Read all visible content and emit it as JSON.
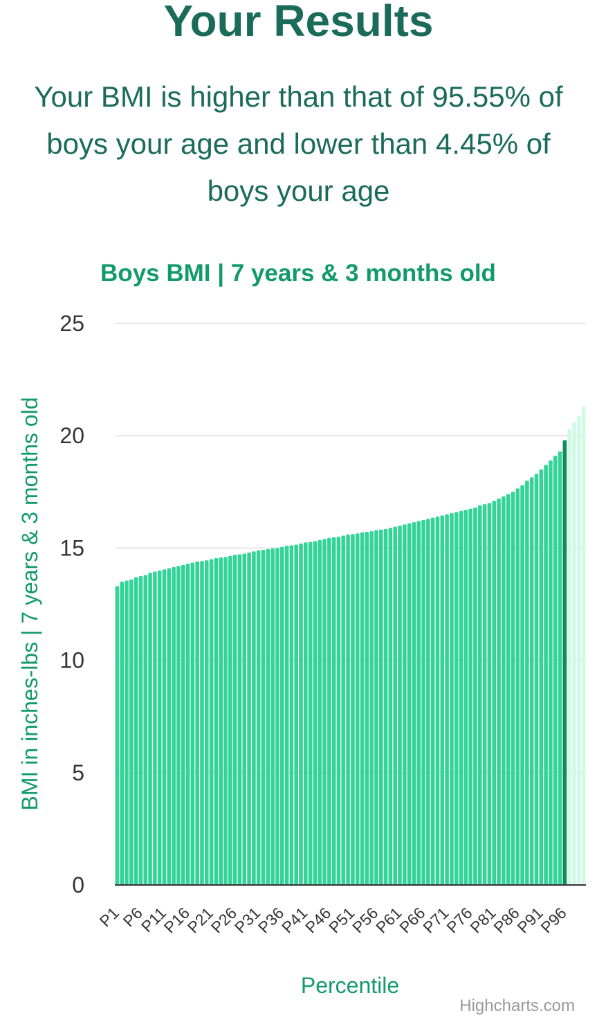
{
  "header": {
    "title": "Your Results",
    "summary": "Your BMI is higher than that of 95.55% of boys your age and lower than 4.45% of boys your age"
  },
  "credits": "Highcharts.com",
  "colors": {
    "bar": "#34d399",
    "highlight": "#0f8a5f",
    "above": "#d1fae5",
    "grid": "#e6e6e6",
    "axis_line": "#333333",
    "title": "#1a6b5a",
    "accent": "#129a6b"
  },
  "chart_data": {
    "type": "bar",
    "title": "Boys BMI | 7 years & 3 months old",
    "xlabel": "Percentile",
    "ylabel": "BMI in inches-lbs | 7 years & 3 months old",
    "ylim": [
      0,
      25
    ],
    "yticks": [
      0,
      5,
      10,
      15,
      20,
      25
    ],
    "grid": true,
    "legend": "none",
    "highlight_category": "P96",
    "categories": [
      "P1",
      "P2",
      "P3",
      "P4",
      "P5",
      "P6",
      "P7",
      "P8",
      "P9",
      "P10",
      "P11",
      "P12",
      "P13",
      "P14",
      "P15",
      "P16",
      "P17",
      "P18",
      "P19",
      "P20",
      "P21",
      "P22",
      "P23",
      "P24",
      "P25",
      "P26",
      "P27",
      "P28",
      "P29",
      "P30",
      "P31",
      "P32",
      "P33",
      "P34",
      "P35",
      "P36",
      "P37",
      "P38",
      "P39",
      "P40",
      "P41",
      "P42",
      "P43",
      "P44",
      "P45",
      "P46",
      "P47",
      "P48",
      "P49",
      "P50",
      "P51",
      "P52",
      "P53",
      "P54",
      "P55",
      "P56",
      "P57",
      "P58",
      "P59",
      "P60",
      "P61",
      "P62",
      "P63",
      "P64",
      "P65",
      "P66",
      "P67",
      "P68",
      "P69",
      "P70",
      "P71",
      "P72",
      "P73",
      "P74",
      "P75",
      "P76",
      "P77",
      "P78",
      "P79",
      "P80",
      "P81",
      "P82",
      "P83",
      "P84",
      "P85",
      "P86",
      "P87",
      "P88",
      "P89",
      "P90",
      "P91",
      "P92",
      "P93",
      "P94",
      "P95",
      "P96",
      "P97",
      "P98",
      "P99",
      "P100"
    ],
    "values": [
      13.3,
      13.5,
      13.55,
      13.6,
      13.7,
      13.75,
      13.8,
      13.9,
      13.95,
      14.0,
      14.05,
      14.1,
      14.15,
      14.2,
      14.25,
      14.3,
      14.35,
      14.4,
      14.42,
      14.45,
      14.5,
      14.55,
      14.58,
      14.6,
      14.65,
      14.7,
      14.72,
      14.75,
      14.8,
      14.85,
      14.9,
      14.92,
      14.95,
      14.98,
      15.0,
      15.05,
      15.1,
      15.12,
      15.15,
      15.2,
      15.25,
      15.28,
      15.3,
      15.35,
      15.4,
      15.45,
      15.48,
      15.5,
      15.55,
      15.6,
      15.62,
      15.65,
      15.7,
      15.72,
      15.75,
      15.8,
      15.82,
      15.85,
      15.9,
      15.95,
      16.0,
      16.05,
      16.1,
      16.15,
      16.2,
      16.25,
      16.3,
      16.35,
      16.4,
      16.45,
      16.5,
      16.55,
      16.6,
      16.65,
      16.7,
      16.75,
      16.8,
      16.9,
      16.95,
      17.0,
      17.1,
      17.2,
      17.3,
      17.4,
      17.5,
      17.65,
      17.8,
      18.0,
      18.15,
      18.3,
      18.5,
      18.7,
      18.9,
      19.1,
      19.3,
      19.8,
      20.3,
      20.6,
      20.9,
      21.3
    ]
  }
}
